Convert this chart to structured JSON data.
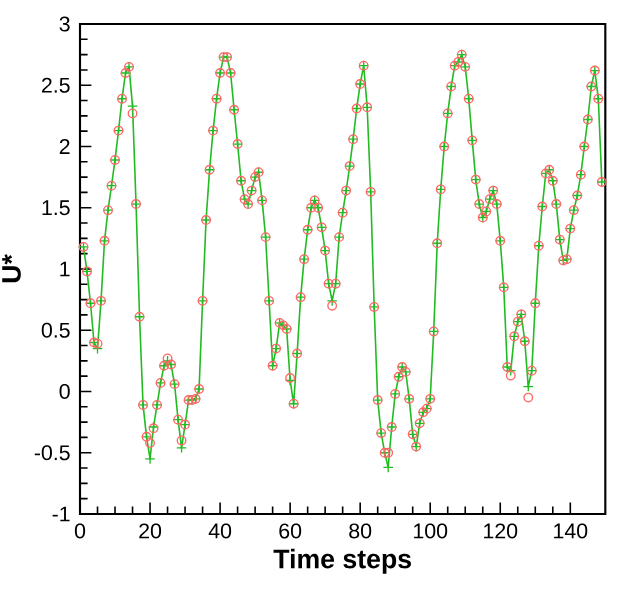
{
  "chart_data": {
    "type": "line",
    "xlabel": "Time steps",
    "ylabel": "U*",
    "xlim": [
      0,
      150
    ],
    "xticks": [
      0,
      20,
      40,
      60,
      80,
      100,
      120,
      140
    ],
    "ylim": [
      -1,
      3
    ],
    "yticks": [
      -1,
      -0.5,
      0,
      0.5,
      1,
      1.5,
      2,
      2.5,
      3
    ],
    "grid": false,
    "x": [
      1,
      2,
      3,
      4,
      5,
      6,
      7,
      8,
      9,
      10,
      11,
      12,
      13,
      14,
      15,
      16,
      17,
      18,
      19,
      20,
      21,
      22,
      23,
      24,
      25,
      26,
      27,
      28,
      29,
      30,
      31,
      32,
      33,
      34,
      35,
      36,
      37,
      38,
      39,
      40,
      41,
      42,
      43,
      44,
      45,
      46,
      47,
      48,
      49,
      50,
      51,
      52,
      53,
      54,
      55,
      56,
      57,
      58,
      59,
      60,
      61,
      62,
      63,
      64,
      65,
      66,
      67,
      68,
      69,
      70,
      71,
      72,
      73,
      74,
      75,
      76,
      77,
      78,
      79,
      80,
      81,
      82,
      83,
      84,
      85,
      86,
      87,
      88,
      89,
      90,
      91,
      92,
      93,
      94,
      95,
      96,
      97,
      98,
      99,
      100,
      101,
      102,
      103,
      104,
      105,
      106,
      107,
      108,
      109,
      110,
      111,
      112,
      113,
      114,
      115,
      116,
      117,
      118,
      119,
      120,
      121,
      122,
      123,
      124,
      125,
      126,
      127,
      128,
      129,
      130,
      131,
      132,
      133,
      134,
      135,
      136,
      137,
      138,
      139,
      140,
      141,
      142,
      143,
      144,
      145,
      146,
      147,
      148,
      149
    ],
    "series": [
      {
        "marker": "cross",
        "line_style": "solid",
        "color": "#22bb22",
        "values": [
          1.18,
          0.98,
          0.72,
          0.4,
          0.35,
          0.74,
          1.23,
          1.48,
          1.68,
          1.89,
          2.13,
          2.39,
          2.6,
          2.65,
          2.33,
          1.53,
          0.61,
          -0.11,
          -0.37,
          -0.55,
          -0.29,
          -0.11,
          0.07,
          0.21,
          0.25,
          0.22,
          0.06,
          -0.23,
          -0.46,
          -0.27,
          -0.07,
          -0.07,
          -0.06,
          0.02,
          0.74,
          1.4,
          1.81,
          2.13,
          2.39,
          2.6,
          2.73,
          2.73,
          2.6,
          2.3,
          2.02,
          1.72,
          1.57,
          1.53,
          1.64,
          1.75,
          1.79,
          1.56,
          1.26,
          0.74,
          0.21,
          0.35,
          0.56,
          0.54,
          0.51,
          0.09,
          -0.1,
          0.31,
          0.77,
          1.08,
          1.32,
          1.5,
          1.56,
          1.5,
          1.34,
          1.15,
          0.88,
          0.74,
          0.88,
          1.26,
          1.46,
          1.64,
          1.84,
          2.06,
          2.31,
          2.51,
          2.66,
          2.32,
          1.63,
          0.69,
          -0.07,
          -0.34,
          -0.5,
          -0.62,
          -0.29,
          -0.02,
          0.12,
          0.2,
          0.16,
          -0.06,
          -0.35,
          -0.45,
          -0.26,
          -0.17,
          -0.14,
          -0.06,
          0.49,
          1.21,
          1.65,
          2.0,
          2.27,
          2.49,
          2.66,
          2.69,
          2.75,
          2.65,
          2.39,
          2.05,
          1.73,
          1.53,
          1.42,
          1.47,
          1.57,
          1.64,
          1.53,
          1.23,
          0.85,
          0.2,
          0.17,
          0.45,
          0.57,
          0.63,
          0.41,
          0.04,
          0.17,
          0.72,
          1.19,
          1.51,
          1.78,
          1.81,
          1.72,
          1.53,
          1.24,
          1.07,
          1.08,
          1.33,
          1.48,
          1.6,
          1.77,
          2.0,
          2.22,
          2.49,
          2.62,
          2.39,
          1.71
        ]
      },
      {
        "type": "scatter",
        "marker": "circle",
        "color": "#ff6666",
        "values": [
          1.18,
          0.98,
          0.72,
          0.4,
          0.39,
          0.74,
          1.23,
          1.48,
          1.68,
          1.89,
          2.13,
          2.39,
          2.6,
          2.65,
          2.27,
          1.53,
          0.61,
          -0.11,
          -0.37,
          -0.42,
          -0.3,
          -0.11,
          0.07,
          0.21,
          0.27,
          0.22,
          0.06,
          -0.23,
          -0.4,
          -0.27,
          -0.07,
          -0.07,
          -0.06,
          0.02,
          0.74,
          1.4,
          1.81,
          2.13,
          2.39,
          2.6,
          2.73,
          2.73,
          2.6,
          2.3,
          2.02,
          1.72,
          1.57,
          1.53,
          1.64,
          1.75,
          1.79,
          1.56,
          1.26,
          0.74,
          0.21,
          0.35,
          0.56,
          0.54,
          0.51,
          0.11,
          -0.1,
          0.31,
          0.77,
          1.08,
          1.32,
          1.5,
          1.56,
          1.5,
          1.34,
          1.15,
          0.88,
          0.7,
          0.88,
          1.26,
          1.46,
          1.64,
          1.84,
          2.06,
          2.31,
          2.51,
          2.66,
          2.32,
          1.63,
          0.69,
          -0.07,
          -0.34,
          -0.5,
          -0.5,
          -0.29,
          -0.02,
          0.12,
          0.2,
          0.16,
          -0.06,
          -0.35,
          -0.45,
          -0.26,
          -0.17,
          -0.14,
          -0.06,
          0.49,
          1.21,
          1.65,
          2.0,
          2.27,
          2.49,
          2.66,
          2.69,
          2.75,
          2.65,
          2.39,
          2.05,
          1.73,
          1.53,
          1.42,
          1.47,
          1.57,
          1.64,
          1.53,
          1.23,
          0.85,
          0.2,
          0.13,
          0.45,
          0.57,
          0.63,
          0.41,
          -0.05,
          0.17,
          0.72,
          1.19,
          1.51,
          1.78,
          1.81,
          1.72,
          1.53,
          1.24,
          1.07,
          1.08,
          1.33,
          1.48,
          1.6,
          1.77,
          2.0,
          2.22,
          2.49,
          2.62,
          2.39,
          1.71
        ]
      }
    ]
  }
}
